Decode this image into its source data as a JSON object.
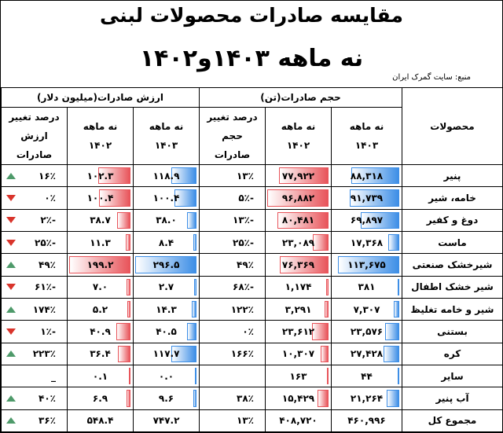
{
  "header": {
    "title": "مقایسه صادرات محصولات لبنی",
    "subtitle": "نه ماهه ۱۴۰۳و۱۴۰۲",
    "source": "منبع: سایت گمرک ایران"
  },
  "table": {
    "groups": [
      "محصولات",
      "حجم صادرات(تن)",
      "ارزش صادرات(میلیون دلار)"
    ],
    "columns": [
      "نه ماهه ۱۴۰۳",
      "نه ماهه ۱۴۰۲",
      "درصد تغییر حجم صادرات",
      "نه ماهه ۱۴۰۳",
      "نه ماهه ۱۴۰۲",
      "درصد تغییر ارزش صادرات"
    ],
    "rows": [
      [
        "پنیر",
        "۸۸,۳۱۸",
        "۷۷,۹۲۲",
        "۱۳٪",
        "۱۱۸.۹",
        "۱۰۲.۳",
        "۱۶٪"
      ],
      [
        "خامه، شیر",
        "۹۱,۷۳۹",
        "۹۶,۸۸۲",
        "-۵٪",
        "۱۰۰.۴",
        "۱۰۰.۴",
        "۰٪"
      ],
      [
        "دوغ و کفیر",
        "۶۹,۸۹۷",
        "۸۰,۴۸۱",
        "-۱۳٪",
        "۳۸.۰",
        "۳۸.۷",
        "-۲٪"
      ],
      [
        "ماست",
        "۱۷,۳۶۸",
        "۲۳,۰۸۹",
        "-۲۵٪",
        "۸.۴",
        "۱۱.۳",
        "-۲۵٪"
      ],
      [
        "شیرخشک صنعتی",
        "۱۱۳,۶۷۵",
        "۷۶,۳۶۹",
        "۴۹٪",
        "۲۹۶.۵",
        "۱۹۹.۲",
        "۴۹٪"
      ],
      [
        "شیر خشک اطفال",
        "۳۸۱",
        "۱,۱۷۴",
        "-۶۸٪",
        "۲.۷",
        "۷.۰",
        "-۶۱٪"
      ],
      [
        "شیر و خامه تغلیظ",
        "۷,۳۰۷",
        "۳,۲۹۱",
        "۱۲۲٪",
        "۱۴.۳",
        "۵.۲",
        "۱۷۴٪"
      ],
      [
        "بستنی",
        "۲۳,۵۷۶",
        "۲۳,۶۱۲",
        "۰٪",
        "۴۰.۵",
        "۴۰.۹",
        "-۱٪"
      ],
      [
        "کره",
        "۲۷,۴۲۸",
        "۱۰,۳۰۷",
        "۱۶۶٪",
        "۱۱۷.۷",
        "۳۶.۴",
        "۲۲۳٪"
      ],
      [
        "سایر",
        "۴۴",
        "۱۶۳",
        null,
        "۰.۰",
        "۰.۱",
        "_"
      ],
      [
        "آب پنیر",
        "۲۱,۲۶۴",
        "۱۵,۴۲۹",
        "۳۸٪",
        "۹.۶",
        "۶.۹",
        "۴۰٪"
      ],
      [
        "مجموع کل",
        "۴۶۰,۹۹۶",
        "۴۰۸,۷۲۰",
        "۱۳٪",
        "۷۴۷.۲",
        "۵۴۸.۴",
        "۳۶٪"
      ]
    ],
    "trends": [
      "up",
      "down",
      "down",
      "down",
      "up",
      "down",
      "up",
      "down",
      "up",
      null,
      "up",
      "up"
    ],
    "bar_columns": [
      1,
      2,
      4,
      5
    ],
    "bar_colors": [
      "#3d8ee6",
      "#e8545a",
      "#3d8ee6",
      "#e8545a"
    ]
  }
}
